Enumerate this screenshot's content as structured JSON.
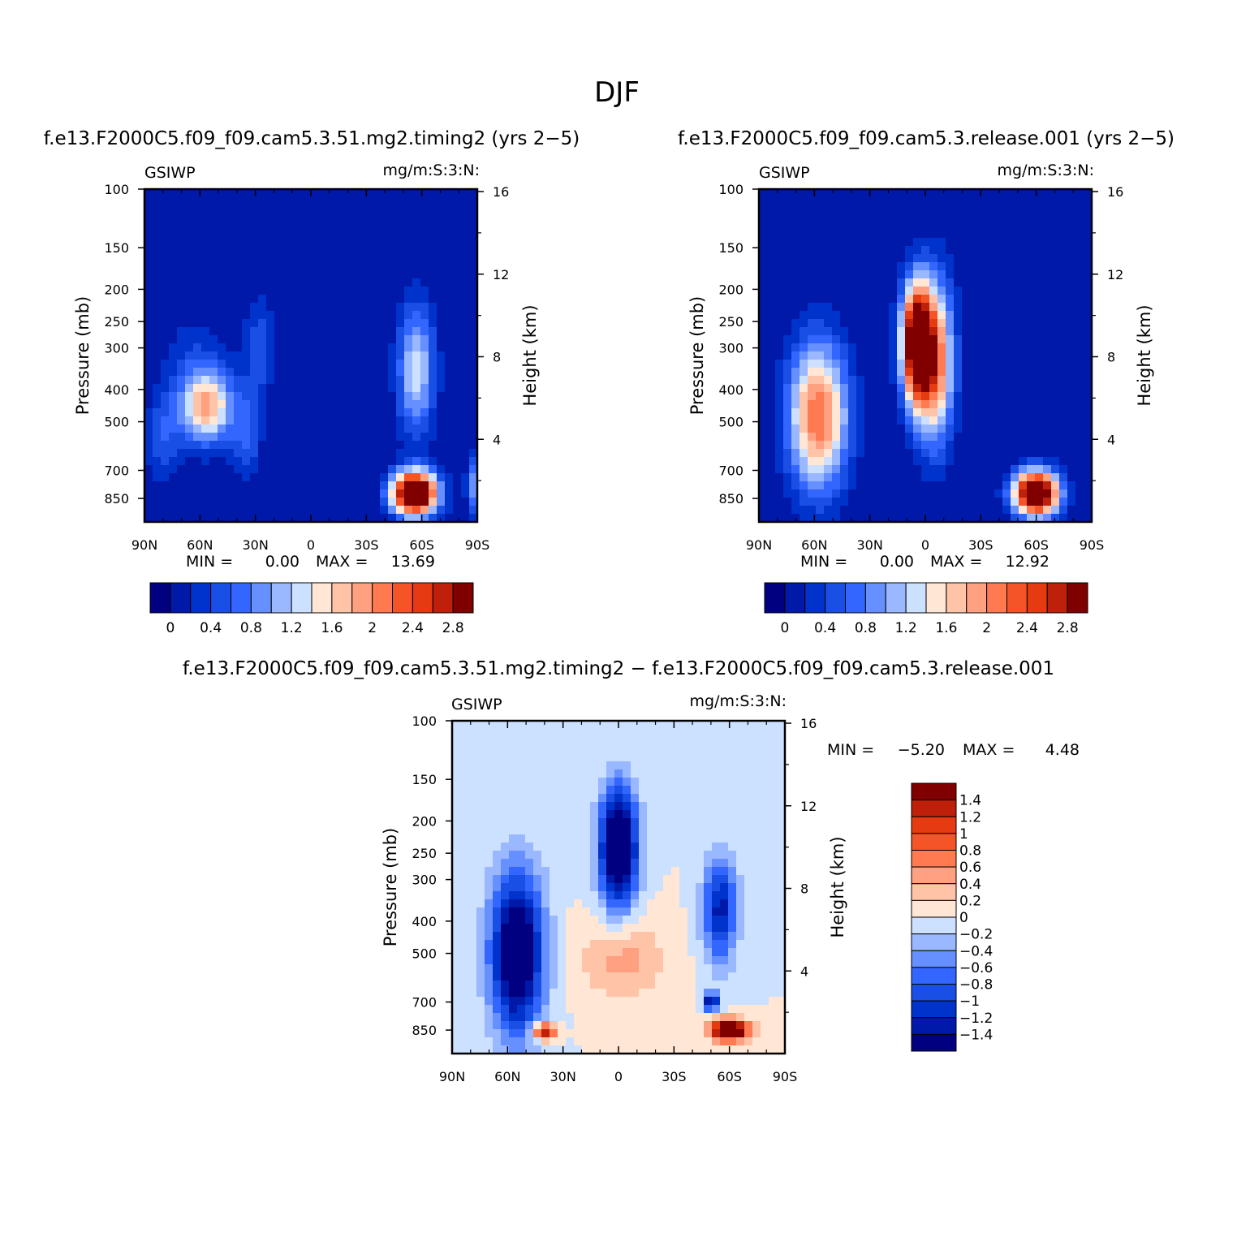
{
  "figure": {
    "title": "DJF"
  },
  "chart_data": [
    {
      "type": "heatmap",
      "title": "f.e13.F2000C5.f09_f09.cam5.3.51.mg2.timing2 (yrs 2−5)",
      "left_label": "GSIWP",
      "right_label": "mg/m:S:3:N:",
      "xlabel": "",
      "ylabel": "Pressure (mb)",
      "y2label": "Height (km)",
      "x_ticks": [
        "90N",
        "60N",
        "30N",
        "0",
        "30S",
        "60S",
        "90S"
      ],
      "y_ticks": [
        "100",
        "150",
        "200",
        "250",
        "300",
        "400",
        "500",
        "700",
        "850"
      ],
      "y2_ticks": [
        "16",
        "12",
        "8",
        "4"
      ],
      "min_text": "MIN =",
      "min_value": "0.00",
      "max_text": "MAX =",
      "max_value": "13.69",
      "colorbar_labels": [
        "0",
        "0.4",
        "0.8",
        "1.2",
        "1.6",
        "2",
        "2.4",
        "2.8"
      ],
      "colors": [
        "#000080",
        "#0019a8",
        "#0033cc",
        "#1a4fe6",
        "#3366ff",
        "#6690ff",
        "#99b8ff",
        "#cce0ff",
        "#ffe6d5",
        "#ffc3a8",
        "#ffa080",
        "#ff7a50",
        "#f55427",
        "#e63a10",
        "#bf200a",
        "#800000"
      ],
      "blobs": [
        {
          "lat": 63,
          "p": 350,
          "a": 0.36,
          "slat": 18,
          "slp": 0.4
        },
        {
          "lat": 56,
          "p": 450,
          "a": 1.7,
          "slat": 14,
          "slp": 0.25
        },
        {
          "lat": 35,
          "p": 550,
          "a": 0.6,
          "slat": 8,
          "slp": 0.3
        },
        {
          "lat": 80,
          "p": 560,
          "a": 0.55,
          "slat": 9,
          "slp": 0.3
        },
        {
          "lat": 28,
          "p": 300,
          "a": 0.55,
          "slat": 8,
          "slp": 0.35
        },
        {
          "lat": -57,
          "p": 350,
          "a": 1.3,
          "slat": 10,
          "slp": 0.45
        },
        {
          "lat": -56,
          "p": 820,
          "a": 4,
          "slat": 12,
          "slp": 0.15
        },
        {
          "lat": -88,
          "p": 780,
          "a": 0.9,
          "slat": 4,
          "slp": 0.2
        }
      ]
    },
    {
      "type": "heatmap",
      "title": "f.e13.F2000C5.f09_f09.cam5.3.release.001 (yrs 2−5)",
      "left_label": "GSIWP",
      "right_label": "mg/m:S:3:N:",
      "xlabel": "",
      "ylabel": "Pressure (mb)",
      "y2label": "Height (km)",
      "x_ticks": [
        "90N",
        "60N",
        "30N",
        "0",
        "30S",
        "60S",
        "90S"
      ],
      "y_ticks": [
        "100",
        "150",
        "200",
        "250",
        "300",
        "400",
        "500",
        "700",
        "850"
      ],
      "y2_ticks": [
        "16",
        "12",
        "8",
        "4"
      ],
      "min_text": "MIN =",
      "min_value": "0.00",
      "max_text": "MAX =",
      "max_value": "12.92",
      "colorbar_labels": [
        "0",
        "0.4",
        "0.8",
        "1.2",
        "1.6",
        "2",
        "2.4",
        "2.8"
      ],
      "colors": [
        "#000080",
        "#0019a8",
        "#0033cc",
        "#1a4fe6",
        "#3366ff",
        "#6690ff",
        "#99b8ff",
        "#cce0ff",
        "#ffe6d5",
        "#ffc3a8",
        "#ffa080",
        "#ff7a50",
        "#f55427",
        "#e63a10",
        "#bf200a",
        "#800000"
      ],
      "blobs": [
        {
          "lat": 58,
          "p": 480,
          "a": 2.2,
          "slat": 16,
          "slp": 0.5
        },
        {
          "lat": 5,
          "p": 290,
          "a": 3.5,
          "slat": 8,
          "slp": 0.4
        },
        {
          "lat": -5,
          "p": 330,
          "a": 2.2,
          "slat": 10,
          "slp": 0.55
        },
        {
          "lat": -60,
          "p": 820,
          "a": 4,
          "slat": 12,
          "slp": 0.15
        }
      ]
    },
    {
      "type": "heatmap",
      "title": "f.e13.F2000C5.f09_f09.cam5.3.51.mg2.timing2 − f.e13.F2000C5.f09_f09.cam5.3.release.001",
      "left_label": "GSIWP",
      "right_label": "mg/m:S:3:N:",
      "xlabel": "",
      "ylabel": "Pressure (mb)",
      "y2label": "Height (km)",
      "x_ticks": [
        "90N",
        "60N",
        "30N",
        "0",
        "30S",
        "60S",
        "90S"
      ],
      "y_ticks": [
        "100",
        "150",
        "200",
        "250",
        "300",
        "400",
        "500",
        "700",
        "850"
      ],
      "y2_ticks": [
        "16",
        "12",
        "8",
        "4"
      ],
      "min_text": "MIN =",
      "min_value": "−5.20",
      "max_text": "MAX =",
      "max_value": "4.48",
      "colorbar_labels": [
        "1.4",
        "1.2",
        "1",
        "0.8",
        "0.6",
        "0.4",
        "0.2",
        "0",
        "−0.2",
        "−0.4",
        "−0.6",
        "−0.8",
        "−1",
        "−1.2",
        "−1.4"
      ],
      "colors": [
        "#000080",
        "#0019a8",
        "#0033cc",
        "#1a4fe6",
        "#3366ff",
        "#6690ff",
        "#99b8ff",
        "#cce0ff",
        "#ffe6d5",
        "#ffc3a8",
        "#ffa080",
        "#ff7a50",
        "#f55427",
        "#e63a10",
        "#bf200a",
        "#800000"
      ],
      "blobs": [
        {
          "lat": 55,
          "p": 500,
          "a": -2.0,
          "slat": 14,
          "slp": 0.55
        },
        {
          "lat": 0,
          "p": 240,
          "a": -2.2,
          "slat": 10,
          "slp": 0.4
        },
        {
          "lat": -55,
          "p": 370,
          "a": -1.3,
          "slat": 9,
          "slp": 0.35
        },
        {
          "lat": -2,
          "p": 520,
          "a": 0.5,
          "slat": 22,
          "slp": 0.28
        },
        {
          "lat": -60,
          "p": 850,
          "a": 2.5,
          "slat": 10,
          "slp": 0.07
        },
        {
          "lat": 40,
          "p": 860,
          "a": 1.6,
          "slat": 6,
          "slp": 0.06
        },
        {
          "lat": -50,
          "p": 700,
          "a": -1.6,
          "slat": 4,
          "slp": 0.06
        }
      ]
    }
  ]
}
